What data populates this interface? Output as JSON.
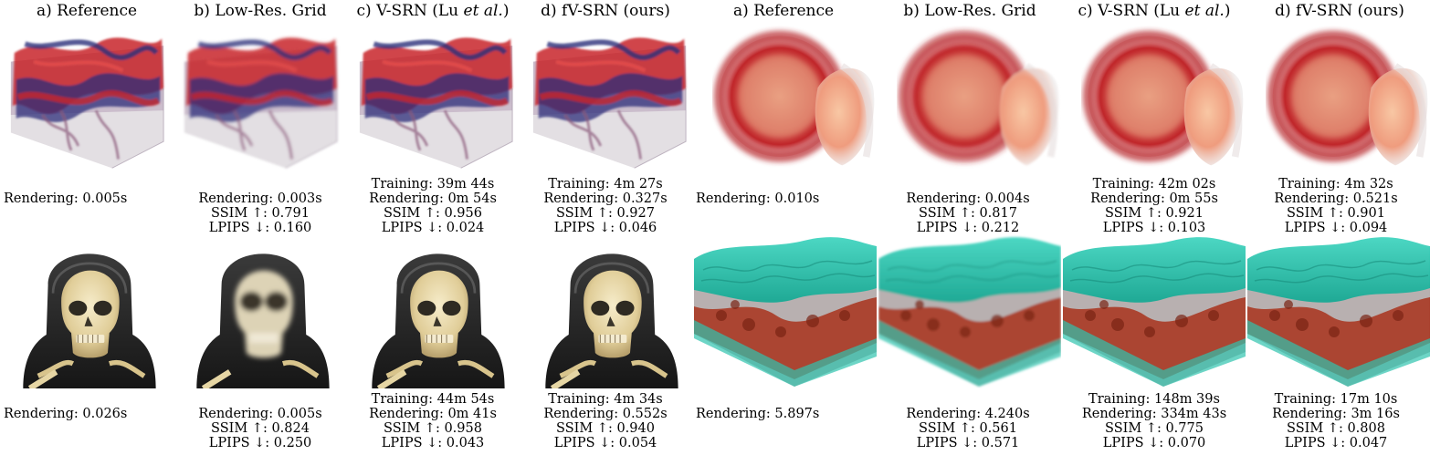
{
  "left": {
    "columns": [
      {
        "title": "a) Reference"
      },
      {
        "title": "b) Low-Res. Grid"
      },
      {
        "title_main": "c) V-SRN (Lu ",
        "title_em": "et al.",
        "title_end": ")"
      },
      {
        "title": "d) fV-SRN (ours)"
      }
    ],
    "rows": [
      {
        "subject": "turbulent-flow",
        "stats": [
          {
            "rendering": "Rendering: 0.005s"
          },
          {
            "rendering": "Rendering: 0.003s",
            "ssim": "SSIM ↑: 0.791",
            "lpips": "LPIPS ↓: 0.160"
          },
          {
            "training": "Training: 39m 44s",
            "rendering": "Rendering: 0m 54s",
            "ssim": "SSIM ↑: 0.956",
            "lpips": "LPIPS ↓: 0.024"
          },
          {
            "training": "Training: 4m 27s",
            "rendering": "Rendering: 0.327s",
            "ssim": "SSIM ↑: 0.927",
            "lpips": "LPIPS ↓: 0.046"
          }
        ]
      },
      {
        "subject": "skull",
        "stats": [
          {
            "rendering": "Rendering: 0.026s"
          },
          {
            "rendering": "Rendering: 0.005s",
            "ssim": "SSIM ↑: 0.824",
            "lpips": "LPIPS ↓: 0.250"
          },
          {
            "training": "Training: 44m 54s",
            "rendering": "Rendering: 0m 41s",
            "ssim": "SSIM ↑: 0.958",
            "lpips": "LPIPS ↓: 0.043"
          },
          {
            "training": "Training: 4m 34s",
            "rendering": "Rendering: 0.552s",
            "ssim": "SSIM ↑: 0.940",
            "lpips": "LPIPS ↓: 0.054"
          }
        ]
      }
    ]
  },
  "right": {
    "columns": [
      {
        "title": "a) Reference"
      },
      {
        "title": "b) Low-Res. Grid"
      },
      {
        "title_main": "c) V-SRN (Lu ",
        "title_em": "et al.",
        "title_end": ")"
      },
      {
        "title": "d) fV-SRN (ours)"
      }
    ],
    "rows": [
      {
        "subject": "sphere",
        "stats": [
          {
            "rendering": "Rendering: 0.010s"
          },
          {
            "rendering": "Rendering: 0.004s",
            "ssim": "SSIM ↑: 0.817",
            "lpips": "LPIPS ↓: 0.212"
          },
          {
            "training": "Training: 42m 02s",
            "rendering": "Rendering: 0m 55s",
            "ssim": "SSIM ↑: 0.921",
            "lpips": "LPIPS ↓: 0.103"
          },
          {
            "training": "Training: 4m 32s",
            "rendering": "Rendering: 0.521s",
            "ssim": "SSIM ↑: 0.901",
            "lpips": "LPIPS ↓: 0.094"
          }
        ]
      },
      {
        "subject": "cloud-layer",
        "stats": [
          {
            "rendering": "Rendering: 5.897s"
          },
          {
            "rendering": "Rendering: 4.240s",
            "ssim": "SSIM ↑: 0.561",
            "lpips": "LPIPS ↓: 0.571"
          },
          {
            "training": "Training: 148m 39s",
            "rendering": "Rendering: 334m 43s",
            "ssim": "SSIM ↑: 0.775",
            "lpips": "LPIPS ↓: 0.070"
          },
          {
            "training": "Training: 17m 10s",
            "rendering": "Rendering: 3m 16s",
            "ssim": "SSIM ↑: 0.808",
            "lpips": "LPIPS ↓: 0.047"
          }
        ]
      }
    ]
  },
  "colors": {
    "flow_red": "#c8262c",
    "flow_blue": "#2c2f7a",
    "sphere_red": "#c0262a",
    "sphere_core": "#e7a083",
    "bone": "#e6d6a4",
    "teal": "#2fc3ae",
    "rust": "#a8321c"
  }
}
